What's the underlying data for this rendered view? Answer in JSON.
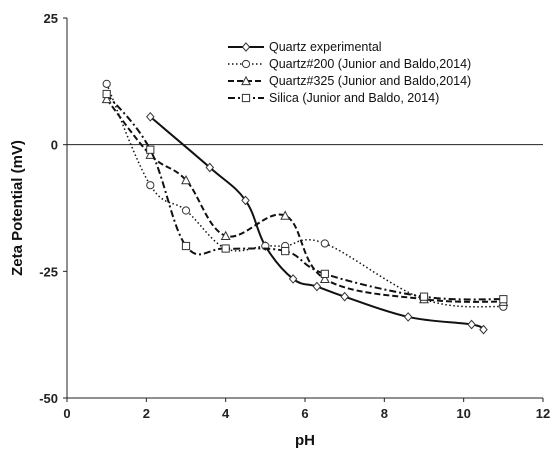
{
  "chart_data": {
    "type": "line",
    "title": "",
    "xlabel": "pH",
    "ylabel": "Zeta Potential (mV)",
    "xlim": [
      0,
      12
    ],
    "ylim": [
      -50,
      25
    ],
    "xticks": [
      0,
      2,
      4,
      6,
      8,
      10,
      12
    ],
    "yticks": [
      25,
      0,
      -25,
      -50
    ],
    "grid": false,
    "zero_line": true,
    "legend_position": "top-right",
    "series": [
      {
        "name": "Quartz experimental",
        "style": "solid",
        "marker": "diamond",
        "x": [
          2.1,
          3.6,
          4.5,
          5.0,
          5.7,
          6.3,
          7.0,
          8.6,
          10.2,
          10.5
        ],
        "y": [
          5.5,
          -4.5,
          -11.0,
          -20.0,
          -26.5,
          -28.0,
          -30.0,
          -34.0,
          -35.5,
          -36.5
        ]
      },
      {
        "name": "Quartz#200 (Junior and Baldo,2014)",
        "style": "dotted",
        "marker": "circle",
        "x": [
          1.0,
          2.1,
          3.0,
          4.0,
          5.0,
          5.5,
          6.5,
          9.0,
          11.0
        ],
        "y": [
          12.0,
          -8.0,
          -13.0,
          -20.5,
          -20.0,
          -20.0,
          -19.5,
          -30.5,
          -32.0
        ]
      },
      {
        "name": "Quartz#325 (Junior and Baldo,2014)",
        "style": "dashed",
        "marker": "triangle",
        "x": [
          1.0,
          2.1,
          3.0,
          4.0,
          5.5,
          6.5,
          9.0,
          11.0
        ],
        "y": [
          9.0,
          -2.0,
          -7.0,
          -18.0,
          -14.0,
          -26.5,
          -30.5,
          -31.0
        ]
      },
      {
        "name": "Silica (Junior and Baldo, 2014)",
        "style": "dashdot",
        "marker": "square",
        "x": [
          1.0,
          2.1,
          3.0,
          4.0,
          5.5,
          6.5,
          9.0,
          11.0
        ],
        "y": [
          10.0,
          -1.0,
          -20.0,
          -20.5,
          -21.0,
          -25.5,
          -30.0,
          -30.5
        ]
      }
    ]
  }
}
